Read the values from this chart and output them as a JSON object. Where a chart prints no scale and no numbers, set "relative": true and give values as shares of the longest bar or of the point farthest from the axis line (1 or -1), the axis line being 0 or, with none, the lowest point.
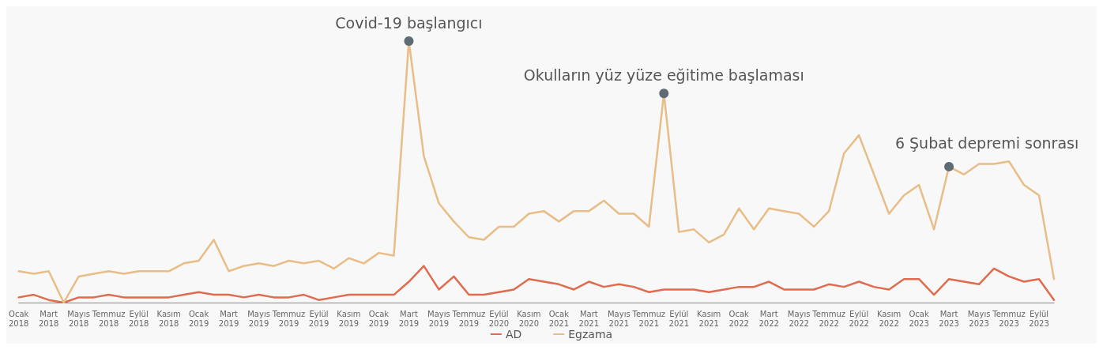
{
  "chart_data": {
    "type": "line",
    "relative": true,
    "legend": "bottom",
    "grid": false,
    "marker": "none",
    "categories": [
      "Ocak 2018",
      null,
      "Mart 2018",
      null,
      "Mayıs 2018",
      null,
      "Temmuz 2018",
      null,
      "Eylül 2018",
      null,
      "Kasım 2018",
      null,
      "Ocak 2019",
      null,
      "Mart 2019",
      null,
      "Mayıs 2019",
      null,
      "Temmuz 2019",
      null,
      "Eylül 2019",
      null,
      "Kasım 2019",
      null,
      "Ocak 2019",
      null,
      "Mart 2019",
      null,
      "Mayıs 2019",
      null,
      "Temmuz 2019",
      null,
      "Eylül 2020",
      null,
      "Kasım 2020",
      null,
      "Ocak 2021",
      null,
      "Mart 2021",
      null,
      "Mayıs 2021",
      null,
      "Temmuz 2021",
      null,
      "Eylül 2021",
      null,
      "Kasım 2021",
      null,
      "Ocak 2022",
      null,
      "Mart 2022",
      null,
      "Mayıs 2022",
      null,
      "Temmuz 2022",
      null,
      "Eylül 2022",
      null,
      "Kasım 2022",
      null,
      "Ocak 2023",
      null,
      "Mart 2023",
      null,
      "Mayıs 2023",
      null,
      "Temmuz 2023",
      null,
      "Eylül 2023",
      null
    ],
    "series": [
      {
        "name": "AD",
        "color": "#e06c50",
        "values": [
          0.02,
          0.03,
          0.01,
          0,
          0.02,
          0.02,
          0.03,
          0.02,
          0.02,
          0.02,
          0.02,
          0.03,
          0.04,
          0.03,
          0.03,
          0.02,
          0.03,
          0.02,
          0.02,
          0.03,
          0.01,
          0.02,
          0.03,
          0.03,
          0.03,
          0.03,
          0.08,
          0.14,
          0.05,
          0.1,
          0.03,
          0.03,
          0.04,
          0.05,
          0.09,
          0.08,
          0.07,
          0.05,
          0.08,
          0.06,
          0.07,
          0.06,
          0.04,
          0.05,
          0.05,
          0.05,
          0.04,
          0.05,
          0.06,
          0.06,
          0.08,
          0.05,
          0.05,
          0.05,
          0.07,
          0.06,
          0.08,
          0.06,
          0.05,
          0.09,
          0.09,
          0.03,
          0.09,
          0.08,
          0.07,
          0.13,
          0.1,
          0.08,
          0.09,
          0.01
        ]
      },
      {
        "name": "Egzama",
        "color": "#e8bd87",
        "values": [
          0.12,
          0.11,
          0.12,
          0,
          0.1,
          0.11,
          0.12,
          0.11,
          0.12,
          0.12,
          0.12,
          0.15,
          0.16,
          0.24,
          0.12,
          0.14,
          0.15,
          0.14,
          0.16,
          0.15,
          0.16,
          0.13,
          0.17,
          0.15,
          0.19,
          0.18,
          1,
          0.56,
          0.38,
          0.31,
          0.25,
          0.24,
          0.29,
          0.29,
          0.34,
          0.35,
          0.31,
          0.35,
          0.35,
          0.39,
          0.34,
          0.34,
          0.29,
          0.8,
          0.27,
          0.28,
          0.23,
          0.26,
          0.36,
          0.28,
          0.36,
          0.35,
          0.34,
          0.29,
          0.35,
          0.57,
          0.64,
          0.49,
          0.34,
          0.41,
          0.45,
          0.28,
          0.52,
          0.49,
          0.53,
          0.53,
          0.54,
          0.45,
          0.41,
          0.09
        ]
      }
    ],
    "annotations": [
      {
        "text": "Covid-19 başlangıcı",
        "y": 1
      },
      {
        "text": "Okulların yüz yüze eğitime başlaması",
        "y": 0.8
      },
      {
        "text": "6 Şubat depremi sonrası",
        "y": 0.52
      }
    ]
  }
}
